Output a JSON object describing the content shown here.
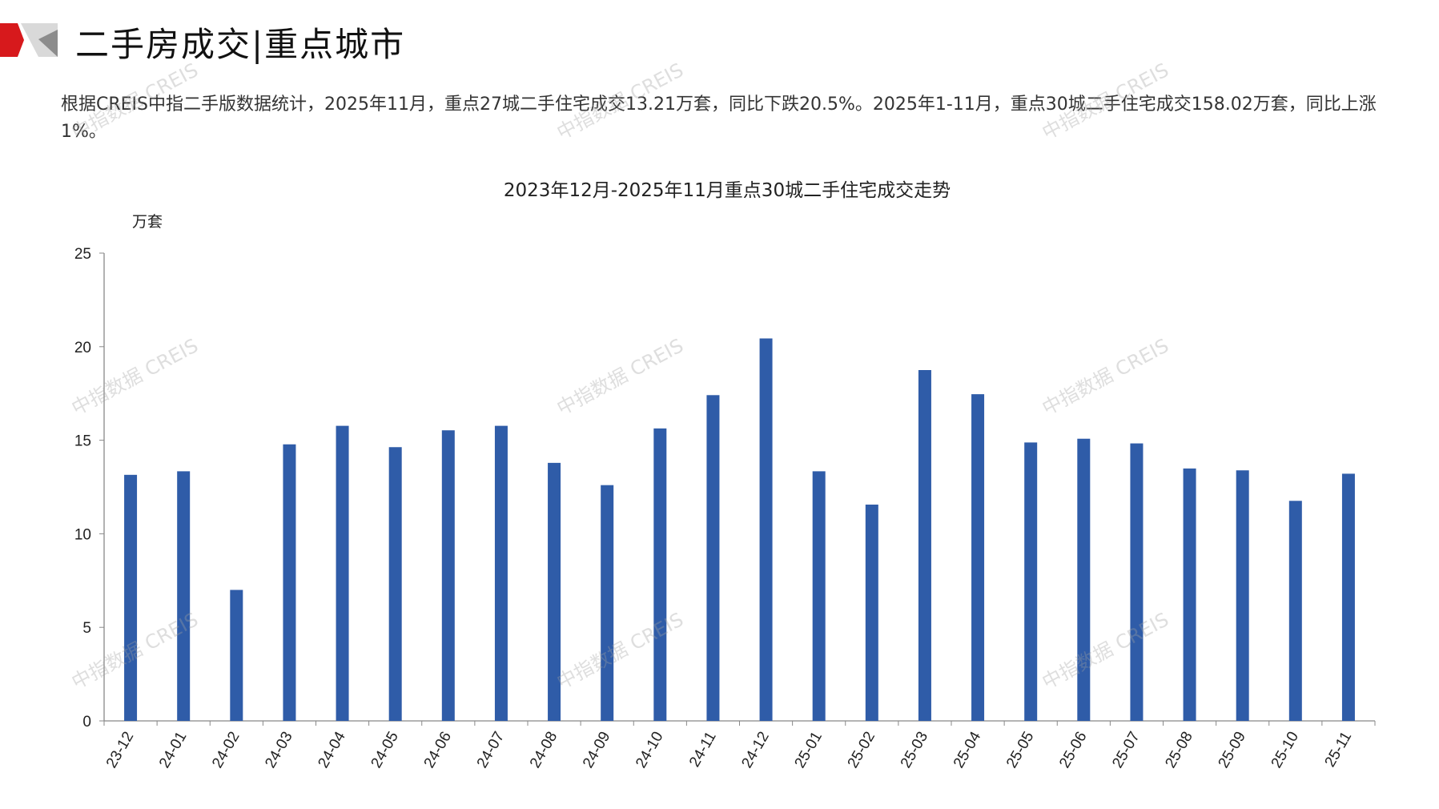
{
  "header": {
    "title": "二手房成交|重点城市",
    "logo_colors": {
      "red": "#d7191c",
      "gray": "#bdbdbd"
    }
  },
  "description": "根据CREIS中指二手版数据统计，2025年11月，重点27城二手住宅成交13.21万套，同比下跌20.5%。2025年1-11月，重点30城二手住宅成交158.02万套，同比上涨1%。",
  "watermark": "中指数据 CREIS",
  "chart_data": {
    "type": "bar",
    "title": "2023年12月-2025年11月重点30城二手住宅成交走势",
    "ylabel": "万套",
    "xlabel": "",
    "ylim": [
      0,
      25
    ],
    "yticks": [
      0,
      5,
      10,
      15,
      20,
      25
    ],
    "grid": false,
    "bar_color": "#2f5ca8",
    "categories": [
      "23-12",
      "24-01",
      "24-02",
      "24-03",
      "24-04",
      "24-05",
      "24-06",
      "24-07",
      "24-08",
      "24-09",
      "24-10",
      "24-11",
      "24-12",
      "25-01",
      "25-02",
      "25-03",
      "25-04",
      "25-05",
      "25-06",
      "25-07",
      "25-08",
      "25-09",
      "25-10",
      "25-11"
    ],
    "values": [
      13.15,
      13.34,
      7.0,
      14.78,
      15.77,
      14.63,
      15.53,
      15.77,
      13.79,
      12.6,
      15.63,
      17.41,
      20.44,
      13.34,
      11.56,
      18.75,
      17.46,
      14.88,
      15.08,
      14.83,
      13.49,
      13.39,
      11.76,
      13.21
    ]
  }
}
